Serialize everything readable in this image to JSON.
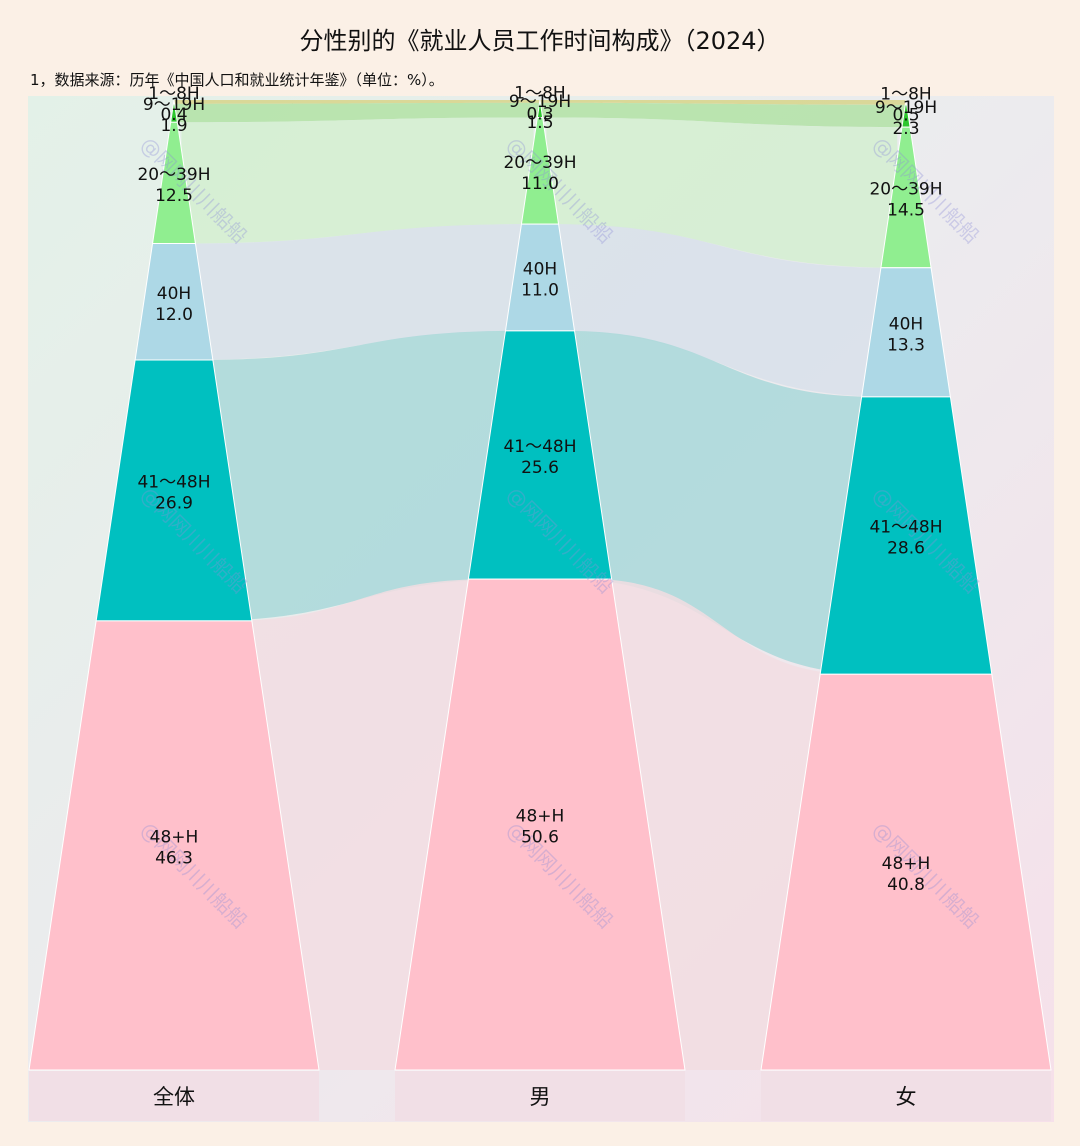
{
  "chart_data": {
    "type": "bar",
    "title": "分性别的《就业人员工作时间构成》（2024）",
    "note": "1，数据来源：历年《中国人口和就业统计年鉴》（单位：%）。",
    "watermark": "@网网川川船船",
    "categories": [
      "全体",
      "男",
      "女"
    ],
    "series": [
      {
        "name": "1～8H",
        "values": [
          0.4,
          0.3,
          0.5
        ],
        "color": "#c8c000",
        "flow_color": "#d7d48a"
      },
      {
        "name": "9～19H",
        "values": [
          1.9,
          1.5,
          2.3
        ],
        "color": "#2ec62e",
        "flow_color": "#b2e2a4"
      },
      {
        "name": "20～39H",
        "values": [
          12.5,
          11.0,
          14.5
        ],
        "color": "#90ee90",
        "flow_color": "#d3eed0"
      },
      {
        "name": "40H",
        "values": [
          12.0,
          11.0,
          13.3
        ],
        "color": "#add8e6",
        "flow_color": "#d8e1ea"
      },
      {
        "name": "41～48H",
        "values": [
          26.9,
          25.6,
          28.6
        ],
        "color": "#00c0c0",
        "flow_color": "#a9d8d9"
      },
      {
        "name": "48+H",
        "values": [
          46.3,
          50.6,
          40.8
        ],
        "color": "#ffc0cb",
        "flow_color": "#f2dde2"
      }
    ]
  }
}
